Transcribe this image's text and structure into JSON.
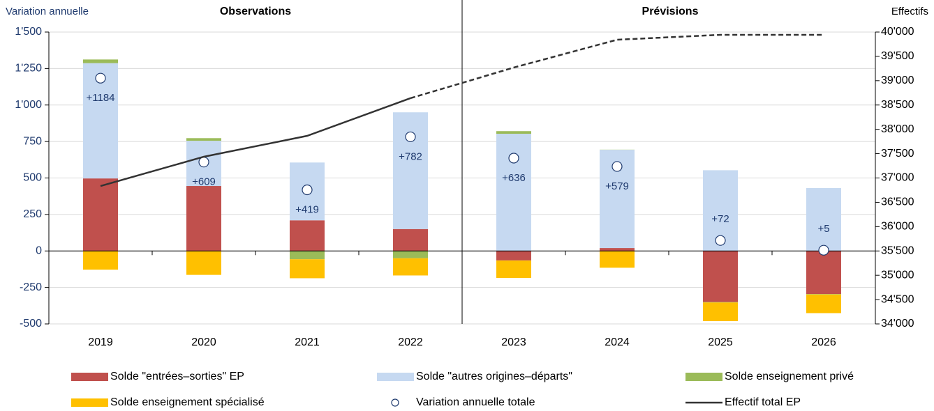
{
  "chart_data": {
    "type": "bar",
    "y_label": "Variation annuelle",
    "y2_label": "Effectifs",
    "annotations": [
      "Observations",
      "Prévisions"
    ],
    "forecast_start": "2023",
    "dashed_from": "2022",
    "categories": [
      "2019",
      "2020",
      "2021",
      "2022",
      "2023",
      "2024",
      "2025",
      "2026"
    ],
    "ylim": [
      -500,
      1500
    ],
    "yticks": [
      {
        "value": -500,
        "label": "-500"
      },
      {
        "value": -250,
        "label": "-250"
      },
      0,
      250,
      500,
      750,
      {
        "value": 1000,
        "label": "1'000"
      },
      {
        "value": 1250,
        "label": "1'250"
      },
      {
        "value": 1500,
        "label": "1'500"
      }
    ],
    "y2lim": [
      34000,
      40000
    ],
    "y2ticks": [
      {
        "value": 34000,
        "label": "34'000"
      },
      {
        "value": 34500,
        "label": "34'500"
      },
      {
        "value": 35000,
        "label": "35'000"
      },
      {
        "value": 35500,
        "label": "35'500"
      },
      {
        "value": 36000,
        "label": "36'000"
      },
      {
        "value": 36500,
        "label": "36'500"
      },
      {
        "value": 37000,
        "label": "37'000"
      },
      {
        "value": 37500,
        "label": "37'500"
      },
      {
        "value": 38000,
        "label": "38'000"
      },
      {
        "value": 38500,
        "label": "38'500"
      },
      {
        "value": 39000,
        "label": "39'000"
      },
      {
        "value": 39500,
        "label": "39'500"
      },
      {
        "value": 40000,
        "label": "40'000"
      }
    ],
    "grid": true,
    "stacked": true,
    "series": [
      {
        "name": "Solde \"entrées–sorties\" EP",
        "type": "bar",
        "color": "#c0504d",
        "values": [
          497,
          445,
          210,
          150,
          -65,
          20,
          -350,
          -295
        ]
      },
      {
        "name": "Solde \"autres origines–départs\"",
        "type": "bar",
        "color": "#c6d9f1",
        "values": [
          790,
          310,
          396,
          800,
          803,
          673,
          553,
          431
        ]
      },
      {
        "name": "Solde enseignement privé",
        "type": "bar",
        "color": "#9bbb59",
        "values": [
          25,
          18,
          -57,
          -50,
          18,
          1,
          -3,
          -3
        ]
      },
      {
        "name": "Solde enseignement spécialisé",
        "type": "bar",
        "color": "#ffc000",
        "values": [
          -128,
          -164,
          -130,
          -118,
          -120,
          -115,
          -128,
          -128
        ]
      },
      {
        "name": "Variation annuelle totale",
        "type": "scatter",
        "color": "#1f3a6e",
        "values": [
          1184,
          609,
          419,
          782,
          636,
          579,
          72,
          5
        ],
        "value_labels": [
          "+1184",
          "+609",
          "+419",
          "+782",
          "+636",
          "+579",
          "+72",
          "+5"
        ]
      },
      {
        "name": "Effectif total EP",
        "type": "line",
        "axis": "y2",
        "color": "#333333",
        "values": [
          36835,
          37437,
          37866,
          38640,
          39270,
          39842,
          39943,
          39943
        ]
      }
    ]
  }
}
